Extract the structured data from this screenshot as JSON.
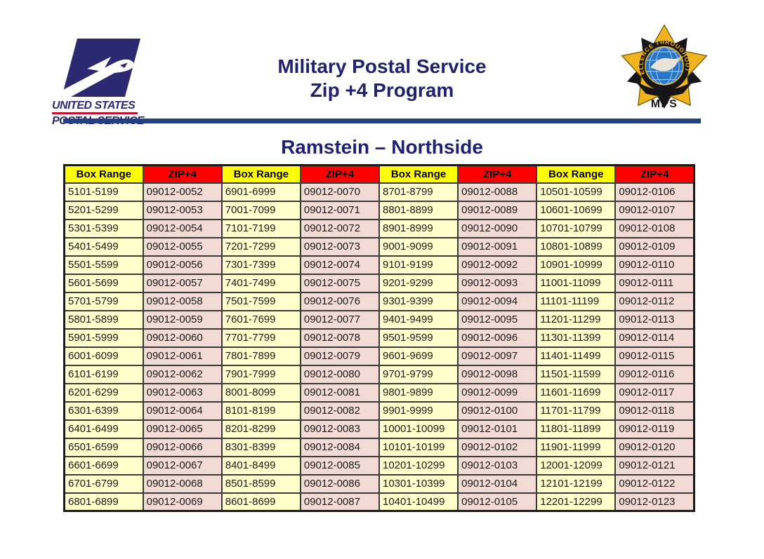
{
  "page": {
    "title_line1": "Military Postal Service",
    "title_line2": "Zip +4 Program",
    "subtitle": "Ramstein – Northside"
  },
  "usps_logo": {
    "line1": "UNITED STATES",
    "line2": "POSTAL SERVICE"
  },
  "mps_badge": {
    "ring_text": "EXCELLENCE THROUGHOUT DoD",
    "label": "MPS"
  },
  "colors": {
    "title_navy": "#1f2173",
    "rule_blue": "#1f3f87",
    "header_yellow": "#ffff00",
    "header_red": "#ff0000",
    "cell_yellow": "#ffffcc",
    "cell_pink": "#f2dbd5",
    "usps_navy": "#2b2a70",
    "usps_red": "#c3112e",
    "badge_gold": "#f0b41e",
    "badge_blue": "#2a76c6"
  },
  "table": {
    "column_headers": [
      "Box Range",
      "ZIP+4",
      "Box Range",
      "ZIP+4",
      "Box Range",
      "ZIP+4",
      "Box Range",
      "ZIP+4"
    ],
    "rows": [
      [
        "5101-5199",
        "09012-0052",
        "6901-6999",
        "09012-0070",
        "8701-8799",
        "09012-0088",
        "10501-10599",
        "09012-0106"
      ],
      [
        "5201-5299",
        "09012-0053",
        "7001-7099",
        "09012-0071",
        "8801-8899",
        "09012-0089",
        "10601-10699",
        "09012-0107"
      ],
      [
        "5301-5399",
        "09012-0054",
        "7101-7199",
        "09012-0072",
        "8901-8999",
        "09012-0090",
        "10701-10799",
        "09012-0108"
      ],
      [
        "5401-5499",
        "09012-0055",
        "7201-7299",
        "09012-0073",
        "9001-9099",
        "09012-0091",
        "10801-10899",
        "09012-0109"
      ],
      [
        "5501-5599",
        "09012-0056",
        "7301-7399",
        "09012-0074",
        "9101-9199",
        "09012-0092",
        "10901-10999",
        "09012-0110"
      ],
      [
        "5601-5699",
        "09012-0057",
        "7401-7499",
        "09012-0075",
        "9201-9299",
        "09012-0093",
        "11001-11099",
        "09012-0111"
      ],
      [
        "5701-5799",
        "09012-0058",
        "7501-7599",
        "09012-0076",
        "9301-9399",
        "09012-0094",
        "11101-11199",
        "09012-0112"
      ],
      [
        "5801-5899",
        "09012-0059",
        "7601-7699",
        "09012-0077",
        "9401-9499",
        "09012-0095",
        "11201-11299",
        "09012-0113"
      ],
      [
        "5901-5999",
        "09012-0060",
        "7701-7799",
        "09012-0078",
        "9501-9599",
        "09012-0096",
        "11301-11399",
        "09012-0114"
      ],
      [
        "6001-6099",
        "09012-0061",
        "7801-7899",
        "09012-0079",
        "9601-9699",
        "09012-0097",
        "11401-11499",
        "09012-0115"
      ],
      [
        "6101-6199",
        "09012-0062",
        "7901-7999",
        "09012-0080",
        "9701-9799",
        "09012-0098",
        "11501-11599",
        "09012-0116"
      ],
      [
        "6201-6299",
        "09012-0063",
        "8001-8099",
        "09012-0081",
        "9801-9899",
        "09012-0099",
        "11601-11699",
        "09012-0117"
      ],
      [
        "6301-6399",
        "09012-0064",
        "8101-8199",
        "09012-0082",
        "9901-9999",
        "09012-0100",
        "11701-11799",
        "09012-0118"
      ],
      [
        "6401-6499",
        "09012-0065",
        "8201-8299",
        "09012-0083",
        "10001-10099",
        "09012-0101",
        "11801-11899",
        "09012-0119"
      ],
      [
        "6501-6599",
        "09012-0066",
        "8301-8399",
        "09012-0084",
        "10101-10199",
        "09012-0102",
        "11901-11999",
        "09012-0120"
      ],
      [
        "6601-6699",
        "09012-0067",
        "8401-8499",
        "09012-0085",
        "10201-10299",
        "09012-0103",
        "12001-12099",
        "09012-0121"
      ],
      [
        "6701-6799",
        "09012-0068",
        "8501-8599",
        "09012-0086",
        "10301-10399",
        "09012-0104",
        "12101-12199",
        "09012-0122"
      ],
      [
        "6801-6899",
        "09012-0069",
        "8601-8699",
        "09012-0087",
        "10401-10499",
        "09012-0105",
        "12201-12299",
        "09012-0123"
      ]
    ]
  }
}
